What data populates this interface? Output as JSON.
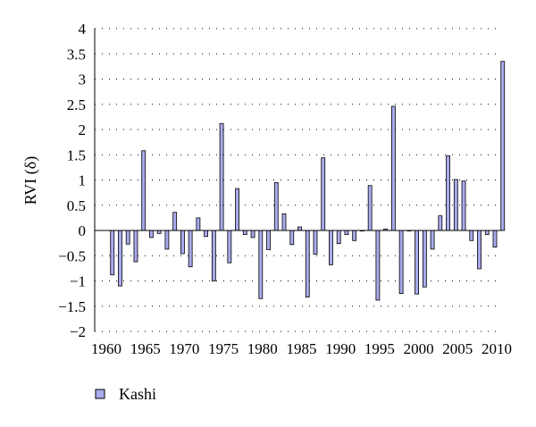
{
  "chart_data": {
    "type": "bar",
    "ylabel": "RVI (δ)",
    "xlabel": "",
    "ylim": [
      -2,
      4
    ],
    "yticks": [
      4,
      3.5,
      3,
      2.5,
      2,
      1.5,
      1,
      0.5,
      0,
      -0.5,
      -1,
      -1.5,
      -2
    ],
    "ytick_labels": [
      "4",
      "3.5",
      "3",
      "2.5",
      "2",
      "1.5",
      "1",
      "0.5",
      "0",
      "−0.5",
      "−1",
      "−1.5",
      "−2"
    ],
    "xlim": [
      1960,
      2010
    ],
    "xticks": [
      1960,
      1965,
      1970,
      1975,
      1980,
      1985,
      1990,
      1995,
      2000,
      2005,
      2010
    ],
    "xtick_labels": [
      "1960",
      "1965",
      "1970",
      "1975",
      "1980",
      "1985",
      "1990",
      "1995",
      "2000",
      "2005",
      "2010"
    ],
    "grid": "dotted",
    "legend_position": "bottom-left",
    "bar_color": "#aaaaee",
    "bar_edge_color": "#000000",
    "series": [
      {
        "name": "Kashi",
        "x": [
          1961,
          1962,
          1963,
          1964,
          1965,
          1966,
          1967,
          1968,
          1969,
          1970,
          1971,
          1972,
          1973,
          1974,
          1975,
          1976,
          1977,
          1978,
          1979,
          1980,
          1981,
          1982,
          1983,
          1984,
          1985,
          1986,
          1987,
          1988,
          1989,
          1990,
          1991,
          1992,
          1993,
          1994,
          1995,
          1996,
          1997,
          1998,
          1999,
          2000,
          2001,
          2002,
          2003,
          2004,
          2005,
          2006,
          2007,
          2008,
          2009,
          2010,
          2011
        ],
        "values": [
          -0.88,
          -1.1,
          -0.27,
          -0.62,
          1.58,
          -0.14,
          -0.06,
          -0.37,
          0.36,
          -0.46,
          -0.72,
          0.25,
          -0.12,
          -1.0,
          2.12,
          -0.64,
          0.83,
          -0.08,
          -0.14,
          -1.35,
          -0.38,
          0.95,
          0.33,
          -0.28,
          0.07,
          -1.32,
          -0.47,
          1.44,
          -0.68,
          -0.26,
          -0.08,
          -0.2,
          0.0,
          0.89,
          -1.38,
          0.03,
          2.46,
          -1.25,
          -0.01,
          -1.26,
          -1.12,
          -0.37,
          0.29,
          1.48,
          1.01,
          0.98,
          -0.2,
          -0.76,
          -0.08,
          -0.33,
          3.35
        ]
      }
    ]
  }
}
